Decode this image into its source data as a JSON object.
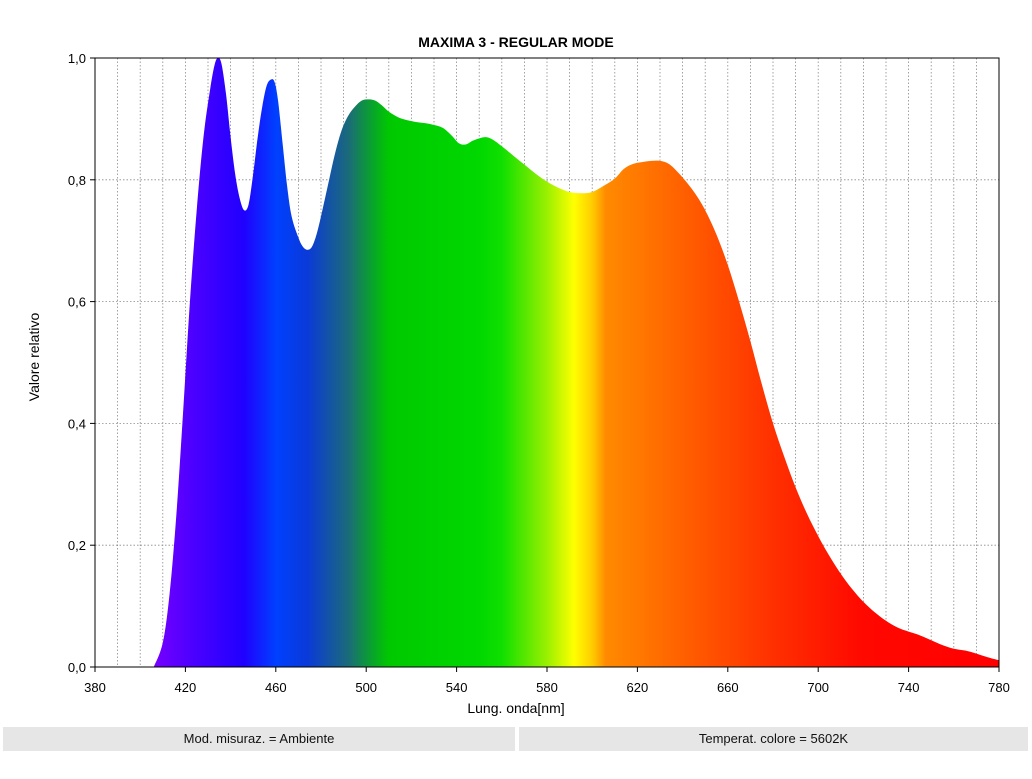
{
  "chart_data": {
    "type": "area",
    "title": "MAXIMA 3 - REGULAR MODE",
    "xlabel": "Lung. onda[nm]",
    "ylabel": "Valore relativo",
    "xlim": [
      380,
      780
    ],
    "ylim": [
      0,
      1.0
    ],
    "x_ticks": [
      "380",
      "420",
      "460",
      "500",
      "540",
      "580",
      "620",
      "660",
      "700",
      "740",
      "780"
    ],
    "y_ticks": [
      "0,0",
      "0,2",
      "0,4",
      "0,6",
      "0,8",
      "1,0"
    ],
    "grid": "dotted",
    "fill": "visible-spectrum gradient",
    "series": [
      {
        "x": [
          406,
          410,
          413,
          416,
          419,
          422,
          425,
          428,
          431,
          433,
          434.5,
          436,
          438,
          440,
          442,
          444,
          446,
          448,
          450,
          452,
          454,
          456,
          458,
          459.5,
          461,
          463,
          465,
          467,
          470,
          472,
          474,
          476,
          478,
          480,
          483,
          486,
          489,
          492,
          495,
          498,
          501,
          504,
          507,
          510,
          514,
          518,
          522,
          526,
          530,
          534,
          538,
          541,
          544,
          547,
          550,
          553,
          556,
          560,
          565,
          570,
          575,
          580,
          585,
          590,
          595,
          600,
          605,
          610,
          614,
          618,
          622,
          626,
          630,
          634,
          638,
          642,
          646,
          650,
          655,
          660,
          665,
          670,
          675,
          680,
          685,
          690,
          695,
          700,
          705,
          710,
          715,
          720,
          725,
          730,
          735,
          740,
          745,
          750,
          755,
          760,
          765,
          770,
          775,
          780
        ],
        "y": [
          0.0,
          0.04,
          0.12,
          0.25,
          0.42,
          0.6,
          0.75,
          0.87,
          0.95,
          0.99,
          1.0,
          0.99,
          0.94,
          0.87,
          0.81,
          0.77,
          0.75,
          0.76,
          0.81,
          0.87,
          0.92,
          0.955,
          0.965,
          0.96,
          0.93,
          0.86,
          0.79,
          0.74,
          0.705,
          0.69,
          0.685,
          0.69,
          0.71,
          0.74,
          0.79,
          0.84,
          0.88,
          0.905,
          0.92,
          0.93,
          0.932,
          0.93,
          0.922,
          0.912,
          0.903,
          0.898,
          0.895,
          0.893,
          0.89,
          0.885,
          0.872,
          0.86,
          0.858,
          0.864,
          0.868,
          0.87,
          0.866,
          0.855,
          0.84,
          0.825,
          0.81,
          0.797,
          0.787,
          0.78,
          0.778,
          0.78,
          0.79,
          0.802,
          0.818,
          0.826,
          0.829,
          0.831,
          0.831,
          0.826,
          0.812,
          0.795,
          0.775,
          0.75,
          0.71,
          0.66,
          0.6,
          0.535,
          0.465,
          0.4,
          0.345,
          0.295,
          0.252,
          0.215,
          0.182,
          0.153,
          0.128,
          0.107,
          0.09,
          0.076,
          0.065,
          0.058,
          0.052,
          0.044,
          0.036,
          0.03,
          0.027,
          0.022,
          0.016,
          0.011
        ]
      }
    ]
  },
  "footer": {
    "left": "Mod. misuraz. = Ambiente",
    "right": "Temperat. colore = 5602K"
  }
}
